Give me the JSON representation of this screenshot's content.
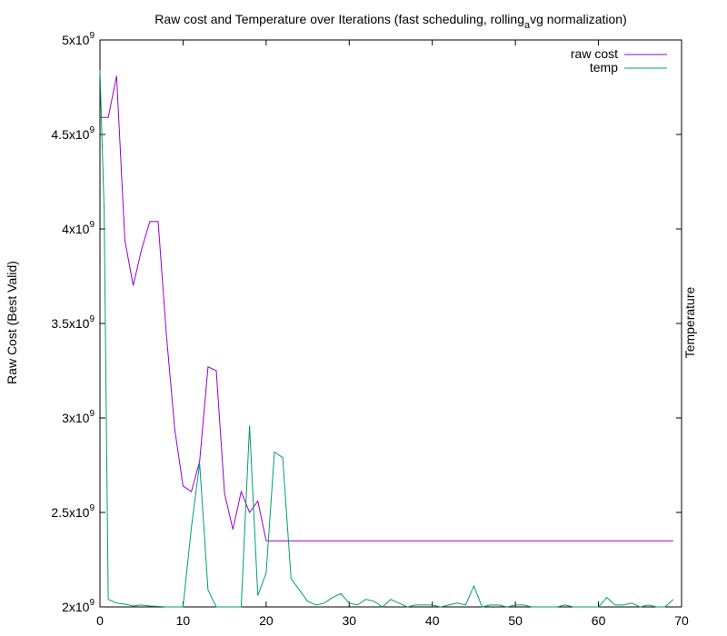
{
  "chart_data": {
    "type": "line",
    "title": {
      "before_sub": "Raw cost and Temperature over Iterations (fast scheduling, rolling",
      "sub": "a",
      "after_sub": "vg normalization)"
    },
    "ylabel": "Raw Cost (Best Valid)",
    "y2label": "Temperature",
    "xlim": [
      0,
      70
    ],
    "ylim": [
      2000000000,
      5000000000
    ],
    "x_ticks": [
      "0",
      "10",
      "20",
      "30",
      "40",
      "50",
      "60",
      "70"
    ],
    "y_ticks": [
      {
        "value": 2000000000,
        "mant": "2x10",
        "exp": "9"
      },
      {
        "value": 2500000000,
        "mant": "2.5x10",
        "exp": "9"
      },
      {
        "value": 3000000000,
        "mant": "3x10",
        "exp": "9"
      },
      {
        "value": 3500000000,
        "mant": "3.5x10",
        "exp": "9"
      },
      {
        "value": 4000000000,
        "mant": "4x10",
        "exp": "9"
      },
      {
        "value": 4500000000,
        "mant": "4.5x10",
        "exp": "9"
      },
      {
        "value": 5000000000,
        "mant": "5x10",
        "exp": "9"
      }
    ],
    "grid": false,
    "legend_position": "top-right",
    "series": [
      {
        "name": "raw cost",
        "color": "#9400d3",
        "x": [
          0,
          1,
          2,
          3,
          4,
          5,
          6,
          7,
          8,
          9,
          10,
          11,
          12,
          13,
          14,
          15,
          16,
          17,
          18,
          19,
          20,
          69
        ],
        "y": [
          4590000000,
          4590000000,
          4810000000,
          3940000000,
          3700000000,
          3890000000,
          4040000000,
          4040000000,
          3440000000,
          2940000000,
          2640000000,
          2610000000,
          2770000000,
          3270000000,
          3250000000,
          2600000000,
          2410000000,
          2610000000,
          2500000000,
          2560000000,
          2350000000,
          2350000000
        ]
      },
      {
        "name": "temp",
        "color": "#009e73",
        "x": [
          0,
          0.5,
          1,
          2,
          3,
          4,
          5,
          6,
          7,
          8,
          9,
          10,
          11,
          12,
          13,
          14,
          15,
          16,
          17,
          18,
          19,
          20,
          21,
          22,
          23,
          24,
          25,
          26,
          27,
          28,
          29,
          30,
          31,
          32,
          33,
          34,
          35,
          36,
          37,
          38,
          39,
          40,
          41,
          42,
          43,
          44,
          45,
          46,
          47,
          48,
          49,
          50,
          51,
          52,
          53,
          54,
          55,
          56,
          57,
          58,
          59,
          60,
          61,
          62,
          63,
          64,
          65,
          66,
          67,
          68,
          69
        ],
        "y": [
          4840000000,
          4100000000,
          2040000000,
          2020000000,
          2015000000,
          2005000000,
          2010000000,
          2005000000,
          2003000000,
          2000000000,
          2000000000,
          2000000000,
          2420000000,
          2760000000,
          2090000000,
          2000000000,
          2000000000,
          2000000000,
          2000000000,
          2960000000,
          2060000000,
          2180000000,
          2820000000,
          2790000000,
          2150000000,
          2090000000,
          2030000000,
          2010000000,
          2020000000,
          2050000000,
          2070000000,
          2020000000,
          2010000000,
          2040000000,
          2030000000,
          2000000000,
          2040000000,
          2020000000,
          2000000000,
          2010000000,
          2010000000,
          2010000000,
          2000000000,
          2010000000,
          2020000000,
          2010000000,
          2110000000,
          2000000000,
          2010000000,
          2010000000,
          2000000000,
          2010000000,
          2010000000,
          2000000000,
          2000000000,
          2000000000,
          2000000000,
          2010000000,
          2000000000,
          2000000000,
          2000000000,
          2000000000,
          2050000000,
          2010000000,
          2010000000,
          2020000000,
          2000000000,
          2010000000,
          2000000000,
          2000000000,
          2040000000
        ]
      }
    ]
  }
}
